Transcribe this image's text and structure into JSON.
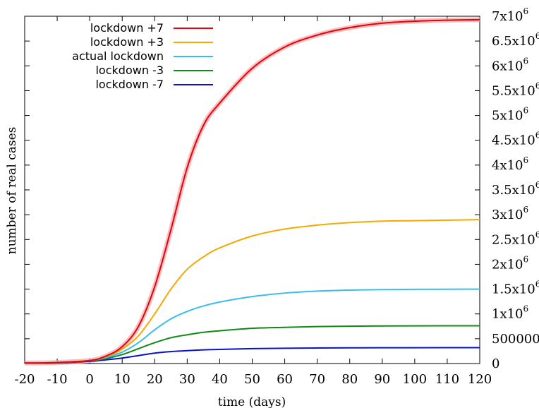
{
  "chart_data": {
    "type": "line",
    "xlabel": "time (days)",
    "ylabel": "number of real cases",
    "xlim": [
      -20,
      120
    ],
    "ylim": [
      0,
      7000000
    ],
    "x_ticks": [
      -20,
      -10,
      0,
      10,
      20,
      30,
      40,
      50,
      60,
      70,
      80,
      90,
      100,
      110,
      120
    ],
    "x_tick_labels": [
      "-20",
      "-10",
      "0",
      "10",
      "20",
      "30",
      "40",
      "50",
      "60",
      "70",
      "80",
      "90",
      "100",
      "110",
      "120"
    ],
    "y_ticks": [
      0,
      500000,
      1000000,
      1500000,
      2000000,
      2500000,
      3000000,
      3500000,
      4000000,
      4500000,
      5000000,
      5500000,
      6000000,
      6500000,
      7000000
    ],
    "y_tick_labels": [
      {
        "base": "0",
        "exp": ""
      },
      {
        "base": "500000",
        "exp": ""
      },
      {
        "base": "1x10",
        "exp": "6"
      },
      {
        "base": "1.5x10",
        "exp": "6"
      },
      {
        "base": "2x10",
        "exp": "6"
      },
      {
        "base": "2.5x10",
        "exp": "6"
      },
      {
        "base": "3x10",
        "exp": "6"
      },
      {
        "base": "3.5x10",
        "exp": "6"
      },
      {
        "base": "4x10",
        "exp": "6"
      },
      {
        "base": "4.5x10",
        "exp": "6"
      },
      {
        "base": "5x10",
        "exp": "6"
      },
      {
        "base": "5.5x10",
        "exp": "6"
      },
      {
        "base": "6x10",
        "exp": "6"
      },
      {
        "base": "6.5x10",
        "exp": "6"
      },
      {
        "base": "7x10",
        "exp": "6"
      }
    ],
    "y_axis_side": "right",
    "grid": false,
    "legend_position": "top-left",
    "x": [
      -20,
      -10,
      0,
      5,
      10,
      15,
      20,
      25,
      30,
      35,
      40,
      50,
      60,
      70,
      80,
      90,
      100,
      110,
      120
    ],
    "series": [
      {
        "name": "lockdown +7",
        "color": "#e8000b",
        "values": [
          10000,
          20000,
          60000,
          150000,
          340000,
          750000,
          1550000,
          2700000,
          3950000,
          4800000,
          5250000,
          5950000,
          6380000,
          6620000,
          6770000,
          6860000,
          6900000,
          6920000,
          6930000
        ]
      },
      {
        "name": "lockdown +3",
        "color": "#f5a800",
        "values": [
          10000,
          20000,
          60000,
          140000,
          290000,
          560000,
          1000000,
          1500000,
          1900000,
          2150000,
          2330000,
          2570000,
          2710000,
          2790000,
          2840000,
          2870000,
          2880000,
          2890000,
          2900000
        ]
      },
      {
        "name": "actual lockdown",
        "color": "#3cbcec",
        "values": [
          10000,
          20000,
          60000,
          120000,
          230000,
          420000,
          680000,
          900000,
          1050000,
          1160000,
          1240000,
          1350000,
          1420000,
          1460000,
          1480000,
          1490000,
          1495000,
          1498000,
          1500000
        ]
      },
      {
        "name": "lockdown -3",
        "color": "#0f8a12",
        "values": [
          10000,
          20000,
          55000,
          100000,
          180000,
          300000,
          420000,
          520000,
          580000,
          630000,
          660000,
          710000,
          730000,
          745000,
          752000,
          757000,
          760000,
          761000,
          762000
        ]
      },
      {
        "name": "lockdown -7",
        "color": "#0a12c8",
        "values": [
          8000,
          15000,
          45000,
          75000,
          110000,
          160000,
          210000,
          240000,
          260000,
          275000,
          285000,
          300000,
          308000,
          313000,
          316000,
          318000,
          319000,
          320000,
          320000
        ]
      }
    ]
  }
}
